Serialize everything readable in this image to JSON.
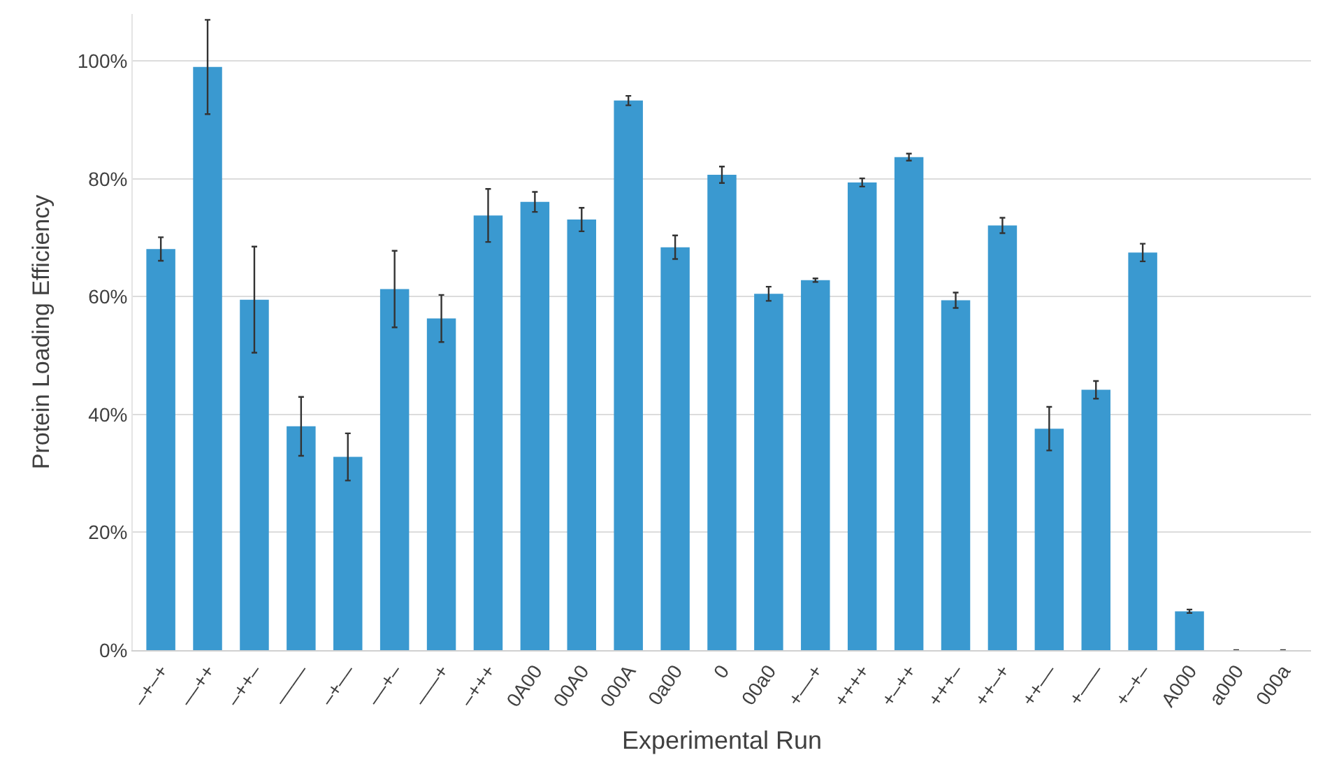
{
  "chart_data": {
    "type": "bar",
    "xlabel": "Experimental Run",
    "ylabel": "Protein Loading Efficiency",
    "categories": [
      "–+–+",
      "––++",
      "–++–",
      "––––",
      "–+––",
      "––+–",
      "–––+",
      "–+++",
      "0A00",
      "00A0",
      "000A",
      "0a00",
      "0",
      "00a0",
      "+––+",
      "++++",
      "+–++",
      "+++–",
      "++–+",
      "++––",
      "+–––",
      "+–+–",
      "A000",
      "a000",
      "000a"
    ],
    "values": [
      68.1,
      99,
      59.5,
      38,
      32.8,
      61.3,
      56.3,
      73.8,
      76.1,
      73.1,
      93.3,
      68.4,
      80.7,
      60.5,
      62.8,
      79.4,
      83.7,
      59.4,
      72.1,
      37.6,
      44.2,
      67.5,
      6.6,
      0,
      0
    ],
    "errors": [
      2,
      8,
      9,
      5,
      4,
      6.5,
      4,
      4.5,
      1.7,
      2,
      0.8,
      2,
      1.4,
      1.2,
      0.3,
      0.7,
      0.6,
      1.3,
      1.3,
      3.7,
      1.5,
      1.5,
      0.3,
      null,
      null
    ],
    "color": "#3a99d0",
    "ylim": [
      0,
      108
    ],
    "yticks": [
      {
        "value": 0,
        "label": "0%"
      },
      {
        "value": 20,
        "label": "20%"
      },
      {
        "value": 40,
        "label": "40%"
      },
      {
        "value": 60,
        "label": "60%"
      },
      {
        "value": 80,
        "label": "80%"
      },
      {
        "value": 100,
        "label": "100%"
      }
    ],
    "grid": "y"
  }
}
